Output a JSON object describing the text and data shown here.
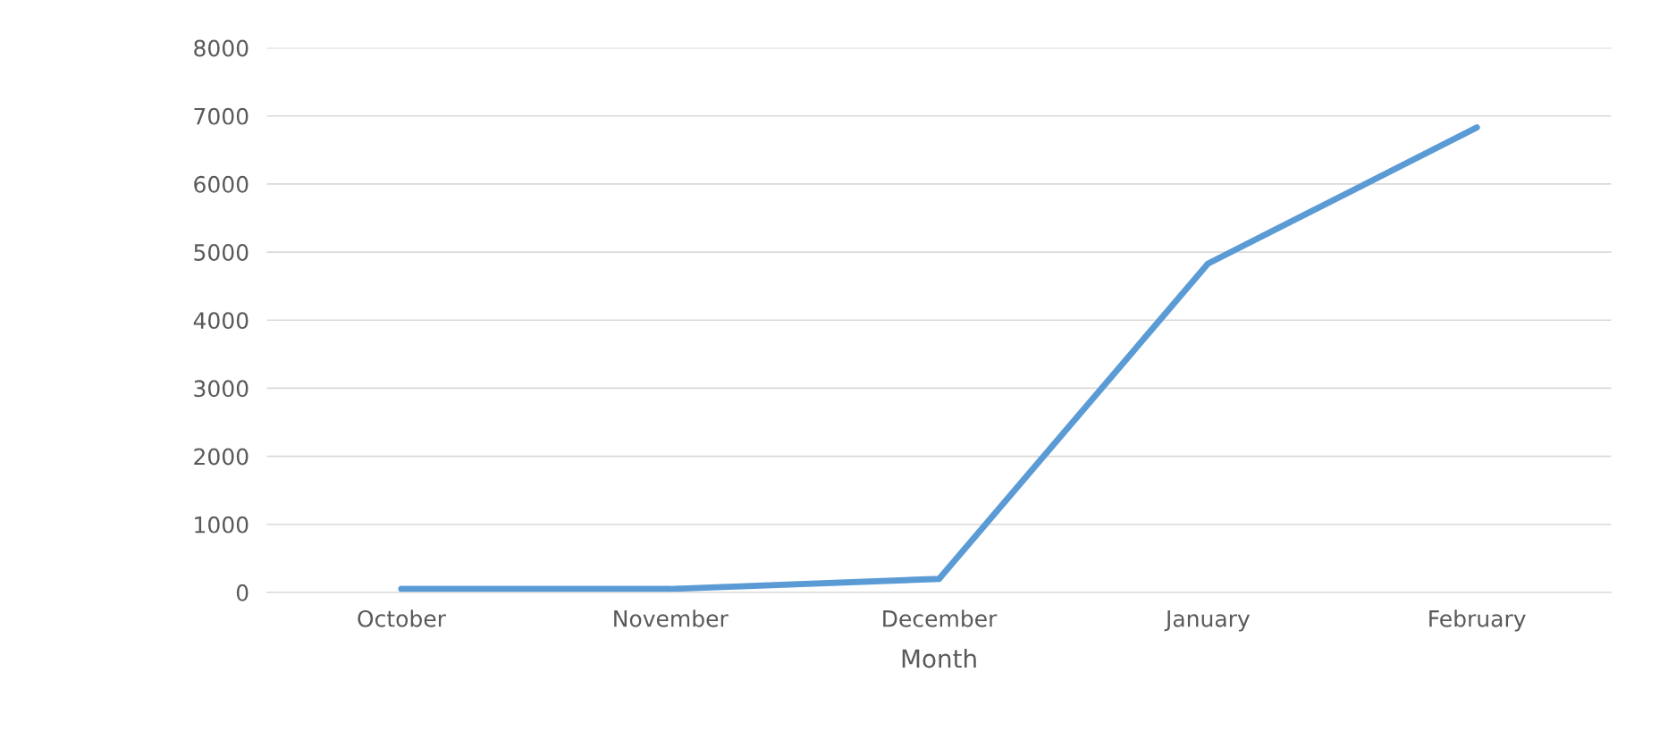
{
  "chart_data": {
    "type": "line",
    "xlabel": "Month",
    "categories": [
      "October",
      "November",
      "December",
      "January",
      "February"
    ],
    "series": [
      {
        "color": "#5b9bd5",
        "values": [
          50,
          50,
          200,
          4830,
          6830
        ]
      }
    ],
    "ylim": [
      0,
      8000
    ],
    "yticks": [
      0,
      1000,
      2000,
      3000,
      4000,
      5000,
      6000,
      7000,
      8000
    ],
    "grid": "y",
    "marker": "none",
    "line_style": "solid",
    "legend": false
  }
}
